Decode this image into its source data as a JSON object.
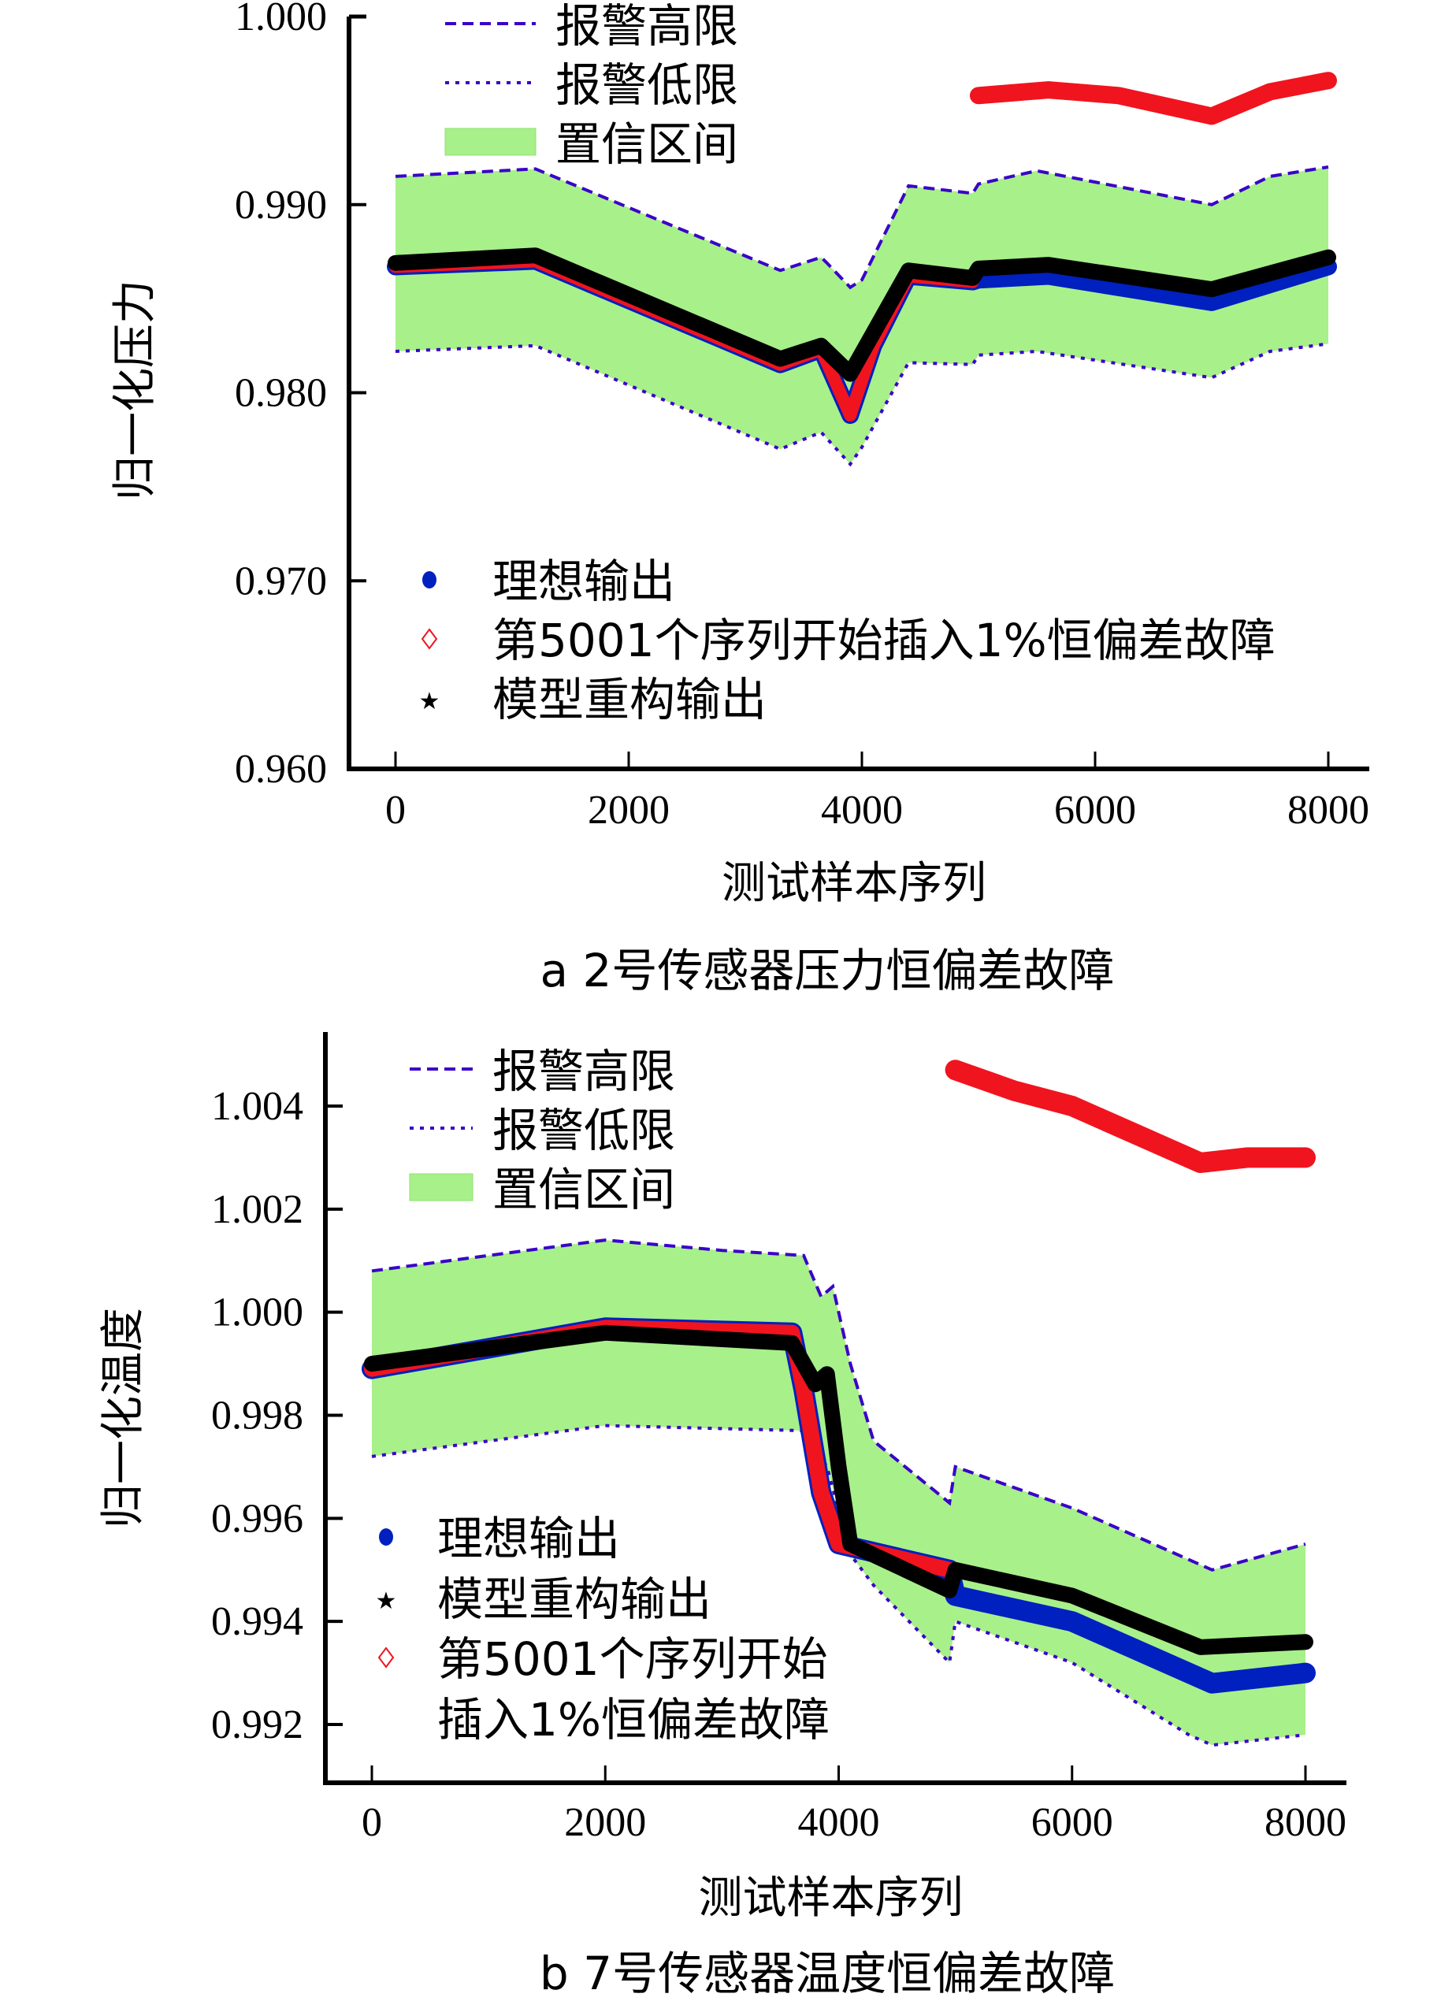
{
  "colors": {
    "band": "#a8f08a",
    "limit": "#3a00c8",
    "ideal": "#0020c0",
    "fault": "#f0141e",
    "model": "#000000",
    "axis": "#000000"
  },
  "chart_data": [
    {
      "type": "line",
      "panel": "a",
      "caption": "a  2号传感器压力恒偏差故障",
      "xlabel": "测试样本序列",
      "ylabel": "归一化压力",
      "xlim": [
        0,
        8000
      ],
      "ylim": [
        0.96,
        1.0
      ],
      "xticks": [
        0,
        2000,
        4000,
        6000,
        8000
      ],
      "xtick_labels": [
        "0",
        "2000",
        "4000",
        "6000",
        "8000"
      ],
      "yticks": [
        0.96,
        0.97,
        0.98,
        0.99,
        1.0
      ],
      "ytick_labels": [
        "0.960",
        "0.970",
        "0.980",
        "0.990",
        "1.000"
      ],
      "legend_top": [
        "报警高限",
        "报警低限",
        "置信区间"
      ],
      "legend_bottom": [
        "理想输出",
        "第5001个序列开始插入1%恒偏差故障",
        "模型重构输出"
      ],
      "series": [
        {
          "name": "报警高限",
          "kind": "upper",
          "x": [
            0,
            1200,
            3300,
            3650,
            3700,
            3900,
            4000,
            4400,
            4950,
            5000,
            5500,
            7000,
            7500,
            8000
          ],
          "y": [
            0.9915,
            0.9919,
            0.9865,
            0.9872,
            0.9869,
            0.9856,
            0.986,
            0.991,
            0.9906,
            0.9911,
            0.9918,
            0.99,
            0.9915,
            0.992
          ]
        },
        {
          "name": "报警低限",
          "kind": "lower",
          "x": [
            0,
            1200,
            3300,
            3650,
            3900,
            4000,
            4400,
            4950,
            5000,
            5500,
            7000,
            7500,
            8000
          ],
          "y": [
            0.9822,
            0.9825,
            0.977,
            0.9779,
            0.9762,
            0.9771,
            0.9816,
            0.9815,
            0.982,
            0.9822,
            0.9808,
            0.9822,
            0.9826
          ]
        },
        {
          "name": "理想输出",
          "kind": "ideal",
          "x": [
            0,
            1200,
            3300,
            3650,
            3900,
            4100,
            4400,
            4950,
            5000,
            5600,
            7000,
            8000
          ],
          "y": [
            0.9867,
            0.987,
            0.9815,
            0.9823,
            0.9788,
            0.9825,
            0.9862,
            0.9859,
            0.986,
            0.9862,
            0.9848,
            0.9867
          ]
        },
        {
          "name": "第5001个序列开始插入1%恒偏差故障",
          "kind": "fault",
          "x": [
            0,
            1200,
            3300,
            3650,
            3900,
            4100,
            4400,
            4950
          ],
          "y": [
            0.9867,
            0.987,
            0.9815,
            0.9823,
            0.9788,
            0.9825,
            0.9862,
            0.9859
          ],
          "fault_x": [
            5000,
            5600,
            6200,
            7000,
            7500,
            8000
          ],
          "fault_y": [
            0.9958,
            0.9961,
            0.9958,
            0.9947,
            0.996,
            0.9966
          ]
        },
        {
          "name": "模型重构输出",
          "kind": "model",
          "x": [
            0,
            1200,
            3300,
            3650,
            3900,
            4100,
            4400,
            4950,
            5000,
            5600,
            7000,
            8000
          ],
          "y": [
            0.9869,
            0.9873,
            0.9818,
            0.9825,
            0.981,
            0.9832,
            0.9865,
            0.9861,
            0.9866,
            0.9868,
            0.9855,
            0.9872
          ]
        }
      ]
    },
    {
      "type": "line",
      "panel": "b",
      "caption": "b  7号传感器温度恒偏差故障",
      "xlabel": "测试样本序列",
      "ylabel": "归一化温度",
      "xlim": [
        0,
        8000
      ],
      "ylim": [
        0.9909,
        1.0054
      ],
      "xticks": [
        0,
        2000,
        4000,
        6000,
        8000
      ],
      "xtick_labels": [
        "0",
        "2000",
        "4000",
        "6000",
        "8000"
      ],
      "yticks": [
        0.992,
        0.994,
        0.996,
        0.998,
        1.0,
        1.002,
        1.004
      ],
      "ytick_labels": [
        "0.992",
        "0.994",
        "0.996",
        "0.998",
        "1.000",
        "1.002",
        "1.004"
      ],
      "legend_top": [
        "报警高限",
        "报警低限",
        "置信区间"
      ],
      "legend_bottom": [
        "理想输出",
        "模型重构输出",
        "第5001个序列开始",
        "插入1%恒偏差故障"
      ],
      "series": [
        {
          "name": "报警高限",
          "kind": "upper",
          "x": [
            0,
            1000,
            2000,
            3000,
            3700,
            3850,
            3950,
            4100,
            4300,
            4950,
            5000,
            6000,
            7000,
            7200,
            8000
          ],
          "y": [
            1.0008,
            1.0011,
            1.0014,
            1.0012,
            1.0011,
            1.0003,
            1.0005,
            0.999,
            0.9975,
            0.9963,
            0.997,
            0.9962,
            0.9952,
            0.995,
            0.9955
          ]
        },
        {
          "name": "报警低限",
          "kind": "lower",
          "x": [
            0,
            2000,
            3700,
            3900,
            4100,
            4300,
            4950,
            5000,
            6000,
            7000,
            7200,
            8000
          ],
          "y": [
            0.9972,
            0.9978,
            0.9977,
            0.997,
            0.9953,
            0.9947,
            0.9932,
            0.994,
            0.9932,
            0.9918,
            0.9916,
            0.9918
          ]
        },
        {
          "name": "理想输出",
          "kind": "ideal",
          "x": [
            0,
            2000,
            3600,
            3700,
            3850,
            4000,
            4950,
            5000,
            6000,
            7200,
            8000
          ],
          "y": [
            0.9989,
            0.9997,
            0.9996,
            0.9985,
            0.9965,
            0.9955,
            0.995,
            0.9945,
            0.994,
            0.9928,
            0.993
          ]
        },
        {
          "name": "第5001个序列开始插入1%恒偏差故障",
          "kind": "fault",
          "x": [
            0,
            2000,
            3600,
            3700,
            3850,
            4000,
            4950
          ],
          "y": [
            0.9989,
            0.9997,
            0.9996,
            0.9985,
            0.9965,
            0.9955,
            0.995
          ],
          "fault_x": [
            5000,
            5500,
            6000,
            6500,
            7100,
            7500,
            8000
          ],
          "fault_y": [
            1.0047,
            1.0043,
            1.004,
            1.0035,
            1.0029,
            1.003,
            1.003
          ]
        },
        {
          "name": "模型重构输出",
          "kind": "model",
          "x": [
            0,
            1000,
            2000,
            3600,
            3800,
            3900,
            4000,
            4100,
            4950,
            5000,
            6000,
            7100,
            8000
          ],
          "y": [
            0.999,
            0.9993,
            0.9996,
            0.9994,
            0.9986,
            0.9988,
            0.997,
            0.9955,
            0.9946,
            0.995,
            0.9945,
            0.9935,
            0.9936
          ]
        }
      ]
    }
  ]
}
